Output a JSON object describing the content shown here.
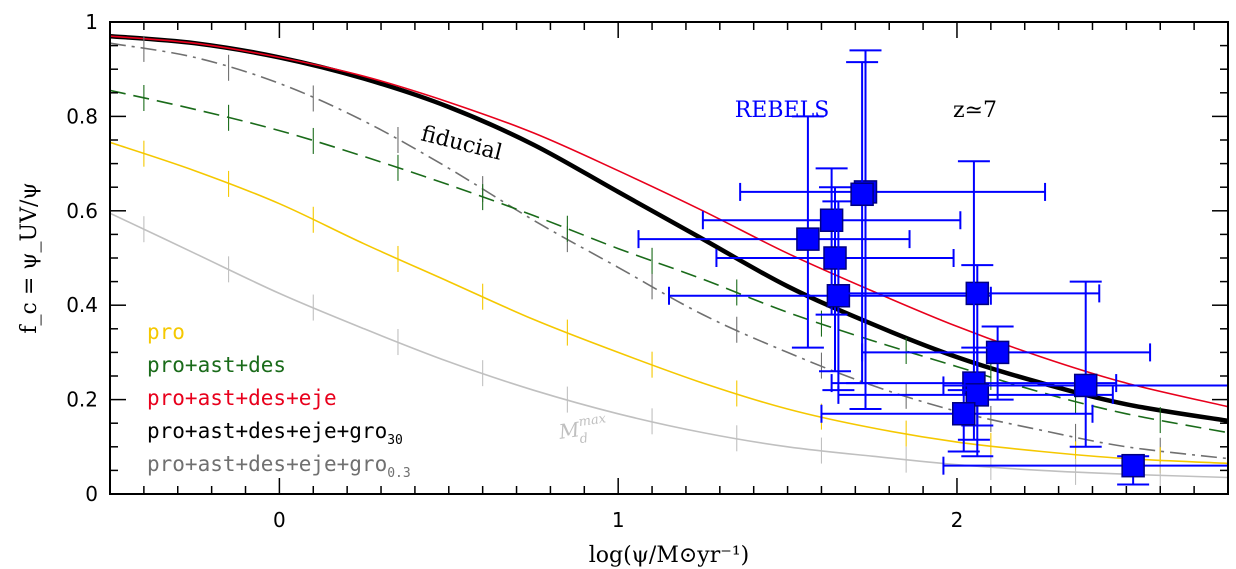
{
  "chart_data": {
    "type": "line",
    "xlabel": "log(ψ/M⊙yr⁻¹)",
    "ylabel": "f_c = ψ_UV/ψ",
    "xlim": [
      -0.5,
      2.8
    ],
    "ylim": [
      0,
      1
    ],
    "xticks": [
      "0",
      "1",
      "2"
    ],
    "xtick_values": [
      0,
      1,
      2
    ],
    "yticks": [
      "0",
      "0.2",
      "0.4",
      "0.6",
      "0.8",
      "1"
    ],
    "ytick_values": [
      0,
      0.2,
      0.4,
      0.6,
      0.8,
      1
    ],
    "grid": false,
    "legend_position": "bottom-left",
    "annotations": {
      "survey": "REBELS",
      "redshift": "z≃7",
      "fiducial": "fiducial",
      "mass_label": "M",
      "mass_sub": "d",
      "mass_sup": "max"
    },
    "colors": {
      "pro": "#f5c800",
      "pro_ast_des": "#1a6b1a",
      "pro_ast_des_eje": "#e8001c",
      "gro30": "#000000",
      "gro03": "#707070",
      "mdmax": "#c0c0c0",
      "rebels": "#0000ff",
      "rebels_edge": "#000080"
    },
    "legend": [
      {
        "label": "pro",
        "sub": "",
        "color": "#f5c800"
      },
      {
        "label": "pro+ast+des",
        "sub": "",
        "color": "#1a6b1a"
      },
      {
        "label": "pro+ast+des+eje",
        "sub": "",
        "color": "#e8001c"
      },
      {
        "label": "pro+ast+des+eje+gro",
        "sub": "30",
        "color": "#000000"
      },
      {
        "label": "pro+ast+des+eje+gro",
        "sub": "0.3",
        "color": "#707070"
      }
    ],
    "series": [
      {
        "key": "gro30",
        "color": "#000000",
        "style": "solid",
        "width": 4.5,
        "x": [
          -0.5,
          -0.25,
          0,
          0.25,
          0.5,
          0.75,
          1,
          1.25,
          1.5,
          1.75,
          2,
          2.25,
          2.5,
          2.8
        ],
        "y": [
          0.97,
          0.955,
          0.925,
          0.88,
          0.82,
          0.74,
          0.64,
          0.54,
          0.44,
          0.36,
          0.29,
          0.235,
          0.19,
          0.155
        ]
      },
      {
        "key": "pro_ast_des_eje",
        "color": "#e8001c",
        "style": "solid",
        "width": 1.6,
        "x": [
          -0.5,
          -0.25,
          0,
          0.25,
          0.5,
          0.75,
          1,
          1.25,
          1.5,
          1.75,
          2,
          2.25,
          2.5,
          2.8
        ],
        "y": [
          0.97,
          0.955,
          0.925,
          0.885,
          0.83,
          0.765,
          0.685,
          0.6,
          0.51,
          0.43,
          0.355,
          0.29,
          0.235,
          0.185
        ]
      },
      {
        "key": "gro03",
        "color": "#707070",
        "style": "dashdot",
        "width": 1.6,
        "x": [
          -0.5,
          -0.25,
          0,
          0.25,
          0.5,
          0.75,
          1,
          1.25,
          1.5,
          1.75,
          2,
          2.25,
          2.5,
          2.8
        ],
        "y": [
          0.955,
          0.925,
          0.87,
          0.79,
          0.69,
          0.58,
          0.48,
          0.38,
          0.3,
          0.23,
          0.175,
          0.135,
          0.1,
          0.075
        ]
      },
      {
        "key": "pro_ast_des",
        "color": "#1a6b1a",
        "style": "dashed",
        "width": 1.6,
        "x": [
          -0.5,
          -0.25,
          0,
          0.25,
          0.5,
          0.75,
          1,
          1.25,
          1.5,
          1.75,
          2,
          2.25,
          2.5,
          2.8
        ],
        "y": [
          0.855,
          0.815,
          0.77,
          0.715,
          0.655,
          0.59,
          0.52,
          0.455,
          0.385,
          0.325,
          0.27,
          0.215,
          0.17,
          0.13
        ]
      },
      {
        "key": "pro",
        "color": "#f5c800",
        "style": "solid",
        "width": 1.6,
        "x": [
          -0.5,
          -0.25,
          0,
          0.25,
          0.5,
          0.75,
          1,
          1.25,
          1.5,
          1.75,
          2,
          2.25,
          2.5,
          2.8
        ],
        "y": [
          0.745,
          0.685,
          0.615,
          0.53,
          0.45,
          0.37,
          0.3,
          0.235,
          0.18,
          0.14,
          0.11,
          0.09,
          0.075,
          0.065
        ]
      },
      {
        "key": "mdmax",
        "color": "#c0c0c0",
        "style": "solid",
        "width": 1.6,
        "x": [
          -0.5,
          -0.25,
          0,
          0.25,
          0.5,
          0.75,
          1,
          1.25,
          1.5,
          1.75,
          2,
          2.25,
          2.5,
          2.8
        ],
        "y": [
          0.595,
          0.51,
          0.425,
          0.35,
          0.28,
          0.22,
          0.17,
          0.13,
          0.1,
          0.08,
          0.062,
          0.05,
          0.042,
          0.035
        ]
      }
    ],
    "points": [
      {
        "x": 1.56,
        "y": 0.54,
        "xerr": [
          0.5,
          0.3
        ],
        "yerr": [
          0.23,
          0.26
        ]
      },
      {
        "x": 1.63,
        "y": 0.58,
        "xerr": [
          0.38,
          0.38
        ],
        "yerr": [
          0.2,
          0.11
        ]
      },
      {
        "x": 1.64,
        "y": 0.5,
        "xerr": [
          0.35,
          0.35
        ],
        "yerr": [
          0.24,
          0.15
        ]
      },
      {
        "x": 1.65,
        "y": 0.42,
        "xerr": [
          0.5,
          0.45
        ],
        "yerr": [
          0.2,
          0.2
        ]
      },
      {
        "x": 1.73,
        "y": 0.64,
        "xerr": [
          0.37,
          0.53
        ],
        "yerr": [
          0.46,
          0.3
        ]
      },
      {
        "x": 1.72,
        "y": 0.635,
        "xerr": [
          0,
          0
        ],
        "yerr": [
          0.4,
          0.28
        ]
      },
      {
        "x": 2.06,
        "y": 0.425,
        "xerr": [
          0.43,
          0.36
        ],
        "yerr": [
          0.28,
          0.06
        ]
      },
      {
        "x": 2.12,
        "y": 0.3,
        "xerr": [
          0.4,
          0.45
        ],
        "yerr": [
          0.1,
          0.055
        ]
      },
      {
        "x": 2.05,
        "y": 0.235,
        "xerr": [
          0.42,
          0.42
        ],
        "yerr": [
          0.12,
          0.47
        ]
      },
      {
        "x": 2.06,
        "y": 0.21,
        "xerr": [
          0.41,
          0.4
        ],
        "yerr": [
          0.13,
          0.1
        ]
      },
      {
        "x": 2.02,
        "y": 0.17,
        "xerr": [
          0.42,
          0.38
        ],
        "yerr": [
          0.08,
          0.05
        ]
      },
      {
        "x": 2.38,
        "y": 0.23,
        "xerr": [
          0.42,
          0.42
        ],
        "yerr": [
          0.13,
          0.22
        ]
      },
      {
        "x": 2.52,
        "y": 0.06,
        "xerr": [
          0.56,
          0.5
        ],
        "yerr": [
          0.04,
          0.02
        ]
      }
    ]
  }
}
